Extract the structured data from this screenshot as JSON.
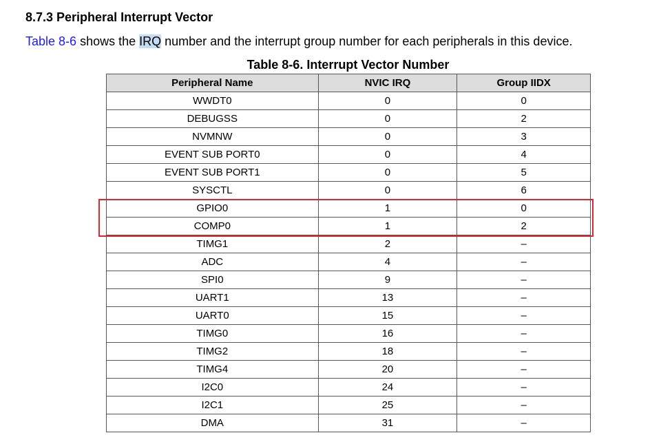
{
  "heading": "8.7.3 Peripheral Interrupt Vector",
  "paragraph": {
    "link": "Table 8-6",
    "text_before_highlight": " shows the ",
    "highlight": "IRQ",
    "text_after_highlight": " number and the interrupt group number for each peripherals in this device."
  },
  "table": {
    "title": "Table 8-6. Interrupt Vector Number",
    "columns": [
      "Peripheral Name",
      "NVIC IRQ",
      "Group IIDX"
    ],
    "rows": [
      [
        "WWDT0",
        0,
        0
      ],
      [
        "DEBUGSS",
        0,
        2
      ],
      [
        "NVMNW",
        0,
        3
      ],
      [
        "EVENT SUB PORT0",
        0,
        4
      ],
      [
        "EVENT SUB PORT1",
        0,
        5
      ],
      [
        "SYSCTL",
        0,
        6
      ],
      [
        "GPIO0",
        1,
        0
      ],
      [
        "COMP0",
        1,
        2
      ],
      [
        "TIMG1",
        2,
        "–"
      ],
      [
        "ADC",
        4,
        "–"
      ],
      [
        "SPI0",
        9,
        "–"
      ],
      [
        "UART1",
        13,
        "–"
      ],
      [
        "UART0",
        15,
        "–"
      ],
      [
        "TIMG0",
        16,
        "–"
      ],
      [
        "TIMG2",
        18,
        "–"
      ],
      [
        "TIMG4",
        20,
        "–"
      ],
      [
        "I2C0",
        24,
        "–"
      ],
      [
        "I2C1",
        25,
        "–"
      ],
      [
        "DMA",
        31,
        "–"
      ]
    ]
  }
}
